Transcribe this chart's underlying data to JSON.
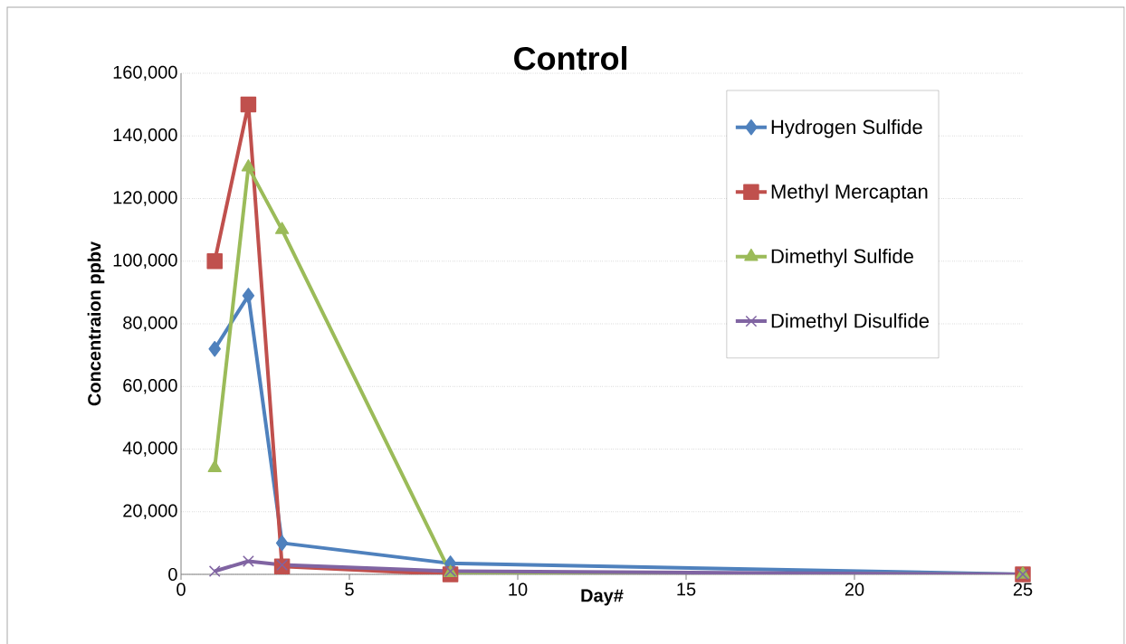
{
  "chart_data": {
    "type": "line",
    "title": "Control",
    "xlabel": "Day#",
    "ylabel": "Concentraion ppbv",
    "x": [
      1,
      2,
      3,
      8,
      25
    ],
    "series": [
      {
        "name": "Hydrogen Sulfide",
        "color": "#4f81bd",
        "marker": "diamond",
        "values": [
          72000,
          89000,
          10000,
          3500,
          0
        ]
      },
      {
        "name": "Methyl Mercaptan",
        "color": "#c0504d",
        "marker": "square",
        "values": [
          100000,
          150000,
          2500,
          0,
          0
        ]
      },
      {
        "name": "Dimethyl Sulfide",
        "color": "#9bbb59",
        "marker": "triangle",
        "values": [
          34000,
          130000,
          110000,
          500,
          0
        ]
      },
      {
        "name": "Dimethyl Disulfide",
        "color": "#8064a2",
        "marker": "cross",
        "values": [
          1000,
          4200,
          3000,
          1000,
          0
        ]
      }
    ],
    "xlim": [
      0,
      25
    ],
    "xticks": [
      0,
      5,
      10,
      15,
      20,
      25
    ],
    "ylim": [
      0,
      160000
    ],
    "yticks": [
      {
        "value": 0,
        "label": "0"
      },
      {
        "value": 20000,
        "label": "20,000"
      },
      {
        "value": 40000,
        "label": "40,000"
      },
      {
        "value": 60000,
        "label": "60,000"
      },
      {
        "value": 80000,
        "label": "80,000"
      },
      {
        "value": 100000,
        "label": "100,000"
      },
      {
        "value": 120000,
        "label": "120,000"
      },
      {
        "value": 140000,
        "label": "140,000"
      },
      {
        "value": 160000,
        "label": "160,000"
      }
    ],
    "grid": "y",
    "legend": "top right"
  }
}
